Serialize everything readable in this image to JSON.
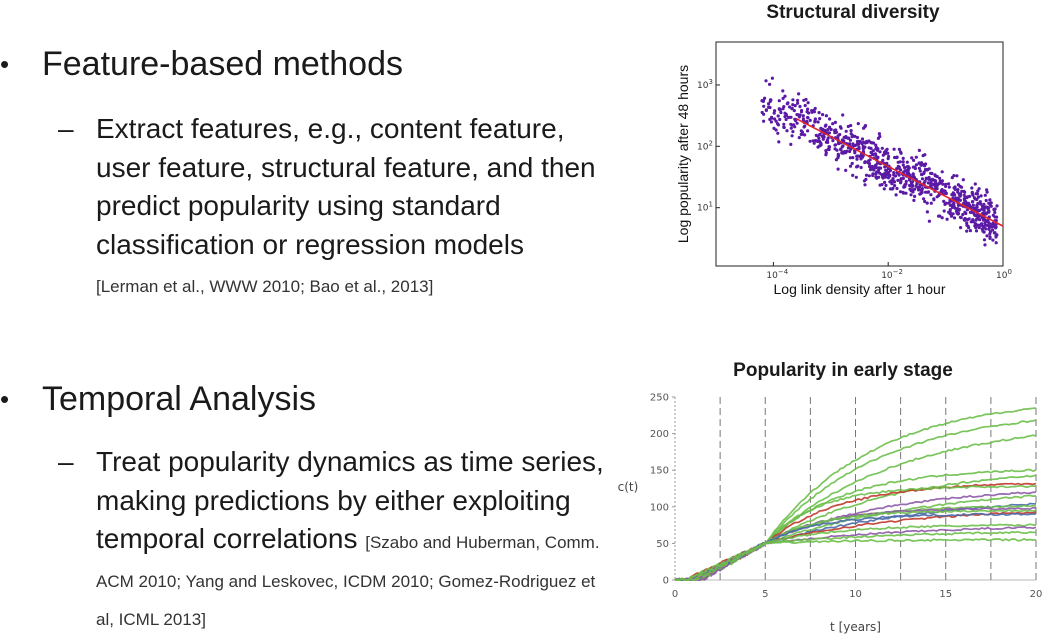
{
  "slide": {
    "section1": {
      "bullet": "Feature-based methods",
      "sub_text": "Extract features, e.g., content feature, user feature, structural feature, and then predict popularity using standard classification or regression models",
      "citation": "[Lerman et al., WWW 2010; Bao et al., 2013]"
    },
    "section2": {
      "bullet": "Temporal Analysis",
      "sub_text": "Treat popularity dynamics as time series, making predictions by either exploiting temporal correlations",
      "citation": "[Szabo and Huberman, Comm. ACM 2010; Yang and Leskovec, ICDM 2010; Gomez-Rodriguez et al, ICML 2013]"
    },
    "bullet_symbol": "•",
    "dash_symbol": "–"
  },
  "chart_data": [
    {
      "type": "scatter",
      "title": "Structural diversity",
      "xlabel": "Log link density after 1 hour",
      "ylabel": "Log popularity after 48 hours",
      "xscale": "log",
      "yscale": "log",
      "xlim_exp": [
        -5,
        0
      ],
      "ylim_exp": [
        0.05,
        3.7
      ],
      "x_ticks": [
        {
          "exp": -4,
          "base": "10",
          "sup": "−4"
        },
        {
          "exp": -2,
          "base": "10",
          "sup": "−2"
        },
        {
          "exp": 0,
          "base": "10",
          "sup": "0"
        }
      ],
      "y_ticks": [
        {
          "exp": 1,
          "base": "10",
          "sup": "1"
        },
        {
          "exp": 2,
          "base": "10",
          "sup": "2"
        },
        {
          "exp": 3,
          "base": "10",
          "sup": "3"
        }
      ],
      "point_color": "#5b1aa6",
      "fit_color": "#e0262b",
      "fit_line": {
        "x_exp": [
          -3.6,
          0
        ],
        "y_exp": [
          2.45,
          0.7
        ]
      },
      "n_points": 900
    },
    {
      "type": "line",
      "title": "Popularity in early stage",
      "xlabel": "t [years]",
      "ylabel": "c(t)",
      "xlim": [
        0,
        20
      ],
      "ylim": [
        0,
        250
      ],
      "x_ticks": [
        0,
        5,
        10,
        15,
        20
      ],
      "y_ticks": [
        0,
        50,
        100,
        150,
        200,
        250
      ],
      "vlines": [
        2.5,
        5,
        7.5,
        10,
        12.5,
        15,
        17.5,
        20
      ],
      "converge_point": {
        "x": 5,
        "y": 50
      },
      "final_values": [
        {
          "v": 235,
          "color": "#6cbf4a"
        },
        {
          "v": 218,
          "color": "#6cbf4a"
        },
        {
          "v": 197,
          "color": "#6cbf4a"
        },
        {
          "v": 150,
          "color": "#6cbf4a"
        },
        {
          "v": 143,
          "color": "#6cbf4a"
        },
        {
          "v": 132,
          "color": "#c0392b"
        },
        {
          "v": 128,
          "color": "#6cbf4a"
        },
        {
          "v": 120,
          "color": "#8e5aa8"
        },
        {
          "v": 115,
          "color": "#6cbf4a"
        },
        {
          "v": 104,
          "color": "#4a6aa8"
        },
        {
          "v": 101,
          "color": "#6cbf4a"
        },
        {
          "v": 98,
          "color": "#8e5aa8"
        },
        {
          "v": 95,
          "color": "#6cbf4a"
        },
        {
          "v": 93,
          "color": "#c0392b"
        },
        {
          "v": 90,
          "color": "#4a6aa8"
        },
        {
          "v": 75,
          "color": "#6cbf4a"
        },
        {
          "v": 72,
          "color": "#8e5aa8"
        },
        {
          "v": 65,
          "color": "#6cbf4a"
        },
        {
          "v": 55,
          "color": "#6cbf4a"
        }
      ]
    }
  ]
}
